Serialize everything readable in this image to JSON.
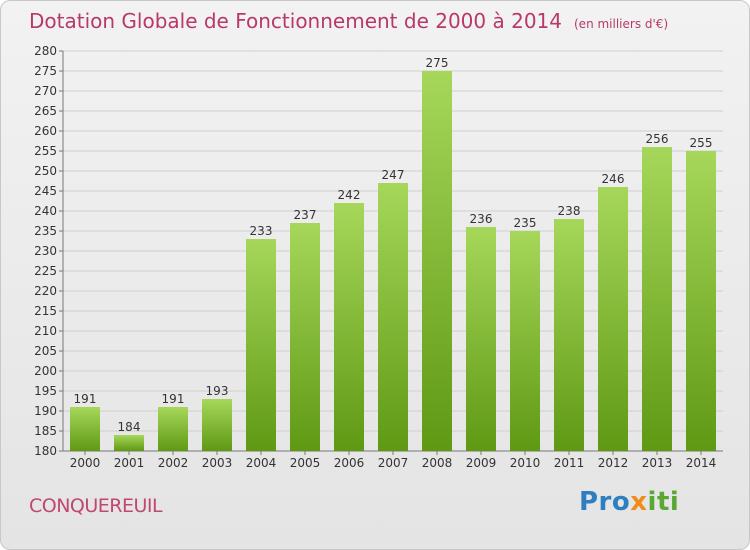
{
  "header": {
    "title": "Dotation Globale de Fonctionnement de 2000 à 2014",
    "unit": "(en milliers d'€)"
  },
  "footer": {
    "place": "CONQUEREUIL",
    "logo": {
      "part1": "Pro",
      "part2": "x",
      "part3": "iti"
    }
  },
  "colors": {
    "bar_light": "#a6d75a",
    "bar_dark": "#5f9914",
    "title": "#b8386a",
    "grid": "#cfcfcf"
  },
  "chart_data": {
    "type": "bar",
    "title": "Dotation Globale de Fonctionnement de 2000 à 2014",
    "subtitle": "(en milliers d'€)",
    "xlabel": "",
    "ylabel": "",
    "ylim": [
      180,
      280
    ],
    "ytick_step": 5,
    "grid": true,
    "categories": [
      "2000",
      "2001",
      "2002",
      "2003",
      "2004",
      "2005",
      "2006",
      "2007",
      "2008",
      "2009",
      "2010",
      "2011",
      "2012",
      "2013",
      "2014"
    ],
    "values": [
      191,
      184,
      191,
      193,
      233,
      237,
      242,
      247,
      275,
      236,
      235,
      238,
      246,
      256,
      255
    ]
  }
}
